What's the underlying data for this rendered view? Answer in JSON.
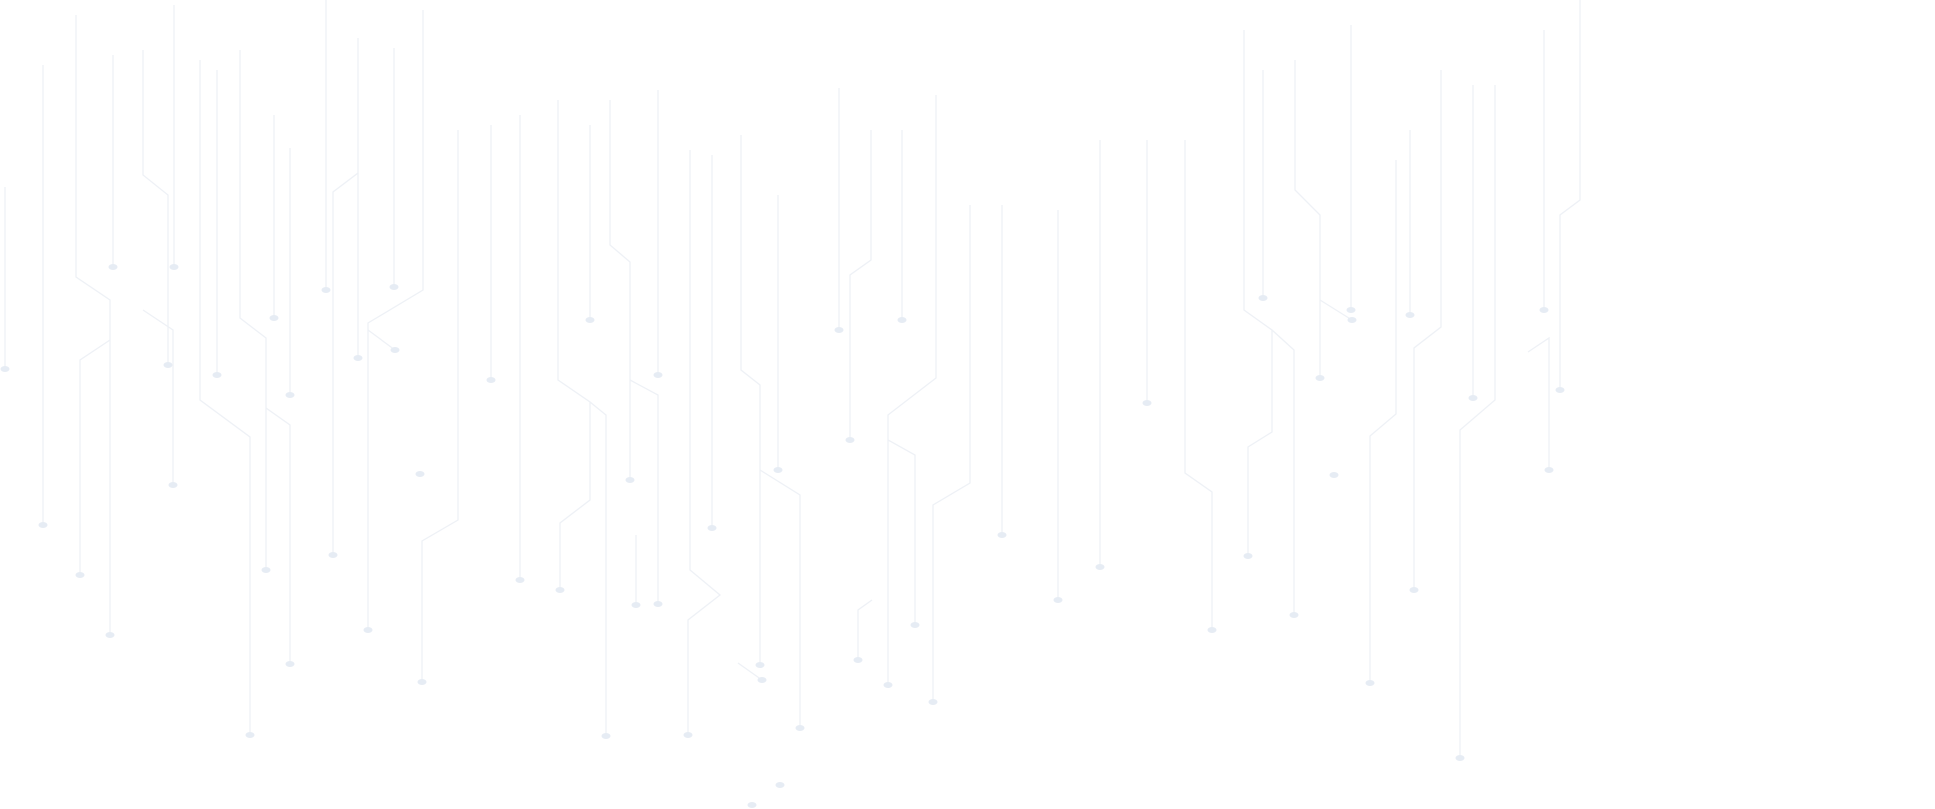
{
  "background": {
    "pattern": "circuit-lines",
    "colors": {
      "page": "#ffffff",
      "line": "#eef1f6",
      "node": "#e6ecf4"
    }
  }
}
